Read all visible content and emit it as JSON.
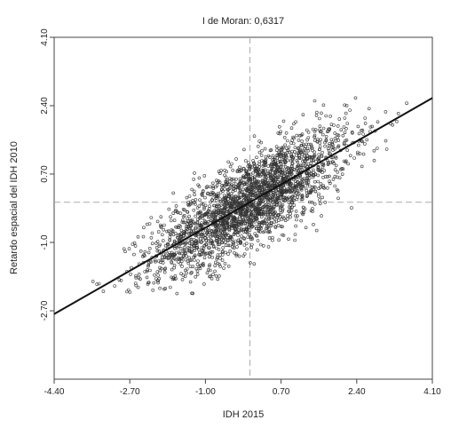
{
  "chart_data": {
    "type": "scatter",
    "title": "I de Moran: 0,6317",
    "xlabel": "IDH 2015",
    "ylabel": "Retardo espacial del IDH 2010",
    "xlim": [
      -4.4,
      4.1
    ],
    "ylim": [
      -4.4,
      4.1
    ],
    "x_ticks": [
      "-4.40",
      "-2.70",
      "-1.00",
      "0.70",
      "2.40",
      "4.10"
    ],
    "y_ticks": [
      "-2.70",
      "-1.0",
      "0.70",
      "2.40",
      "4.10"
    ],
    "y_tick_values": [
      -2.7,
      -1.0,
      0.7,
      2.4,
      4.1
    ],
    "x_tick_values": [
      -4.4,
      -2.7,
      -1.0,
      0.7,
      2.4,
      4.1
    ],
    "reference_lines": {
      "x": 0,
      "y": 0,
      "style": "dashed"
    },
    "regression_line": {
      "slope": 0.6317,
      "intercept": 0
    },
    "grid": false,
    "legend": "none",
    "point_count_approx": 2500,
    "x_range_points": [
      -3.9,
      3.8
    ],
    "y_range_points": [
      -2.3,
      2.6
    ],
    "colors": {
      "points": "#333333",
      "line": "#111111",
      "ref_lines": "#aaaaaa",
      "axes": "#444444"
    },
    "series": [
      {
        "values": [
          [
            -3.2,
            -1.3
          ],
          [
            -2.2,
            -1.5
          ],
          [
            -1.5,
            -0.9
          ],
          [
            -0.6,
            -0.2
          ],
          [
            0.0,
            0.1
          ],
          [
            0.5,
            0.4
          ],
          [
            1.0,
            0.9
          ],
          [
            1.6,
            1.2
          ],
          [
            2.2,
            1.6
          ],
          [
            2.8,
            1.8
          ],
          [
            3.6,
            2.4
          ]
        ]
      }
    ]
  }
}
